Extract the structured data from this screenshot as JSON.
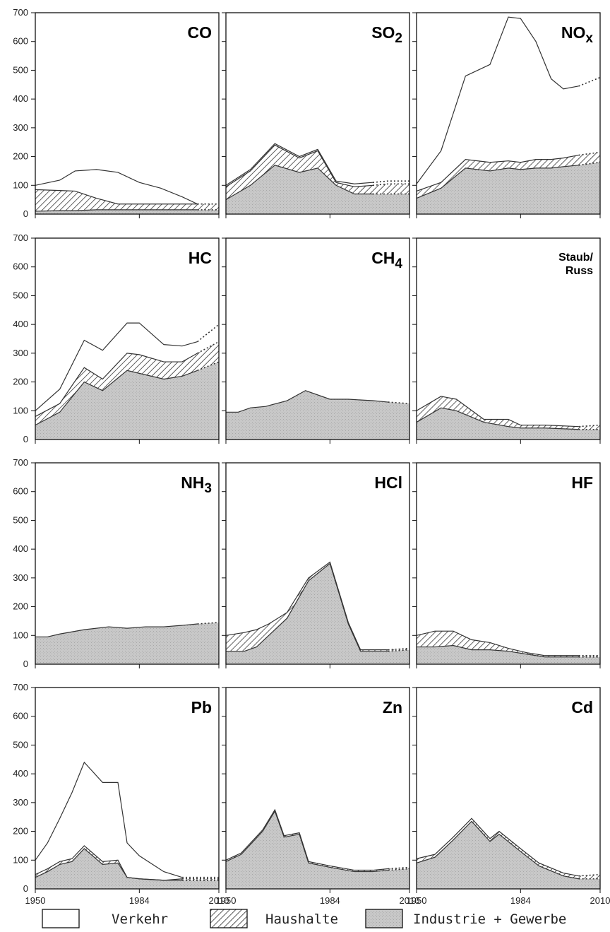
{
  "legend": [
    {
      "label": "Verkehr",
      "key": "verkehr"
    },
    {
      "label": "Haushalte",
      "key": "haushalte"
    },
    {
      "label": "Industrie + Gewerbe",
      "key": "industrie"
    }
  ],
  "colors": {
    "industrie": "#c8c8c8",
    "verkehr": "#ffffff",
    "line": "#333333"
  },
  "chart_data": [
    {
      "type": "area",
      "title": "CO",
      "x": [
        1950,
        1958,
        1963,
        1970,
        1977,
        1984,
        1991,
        1998,
        2003,
        2010
      ],
      "series": [
        {
          "name": "Industrie + Gewerbe",
          "values": [
            10,
            12,
            12,
            15,
            15,
            15,
            15,
            15,
            15,
            15
          ]
        },
        {
          "name": "Haushalte",
          "values": [
            75,
            70,
            68,
            40,
            20,
            20,
            20,
            20,
            20,
            20
          ]
        },
        {
          "name": "Verkehr",
          "values": [
            15,
            36,
            70,
            100,
            110,
            75,
            55,
            25,
            0,
            0
          ]
        }
      ],
      "projected_from": 2003,
      "ylim": [
        0,
        700
      ],
      "y_ticks": [
        100,
        200,
        300,
        400,
        500,
        600,
        700
      ],
      "x_ticks": [
        1950,
        1984,
        2010
      ]
    },
    {
      "type": "area",
      "title": "SO2",
      "title_main": "SO",
      "title_sub": "2",
      "x": [
        1950,
        1958,
        1966,
        1974,
        1980,
        1986,
        1992,
        1998,
        2003,
        2010
      ],
      "series": [
        {
          "name": "Industrie + Gewerbe",
          "values": [
            50,
            100,
            170,
            145,
            160,
            100,
            70,
            70,
            70,
            70
          ]
        },
        {
          "name": "Haushalte",
          "values": [
            45,
            50,
            70,
            50,
            60,
            10,
            25,
            30,
            35,
            35
          ]
        },
        {
          "name": "Verkehr",
          "values": [
            5,
            5,
            5,
            5,
            5,
            5,
            10,
            10,
            10,
            10
          ]
        }
      ],
      "projected_from": 1998,
      "ylim": [
        0,
        700
      ],
      "y_ticks": [
        100,
        200,
        300,
        400,
        500,
        600,
        700
      ],
      "x_ticks": [
        1950,
        1984,
        2010
      ]
    },
    {
      "type": "area",
      "title": "NOx",
      "title_main": "NO",
      "title_sub": "x",
      "x": [
        1950,
        1958,
        1966,
        1974,
        1980,
        1984,
        1989,
        1994,
        1998,
        2003,
        2010
      ],
      "series": [
        {
          "name": "Industrie + Gewerbe",
          "values": [
            55,
            90,
            160,
            150,
            160,
            155,
            160,
            160,
            165,
            170,
            180
          ]
        },
        {
          "name": "Haushalte",
          "values": [
            25,
            20,
            30,
            30,
            25,
            25,
            30,
            30,
            30,
            35,
            35
          ]
        },
        {
          "name": "Verkehr",
          "values": [
            25,
            110,
            290,
            340,
            500,
            500,
            410,
            280,
            240,
            240,
            260
          ]
        }
      ],
      "projected_from": 2003,
      "ylim": [
        0,
        700
      ],
      "y_ticks": [
        100,
        200,
        300,
        400,
        500,
        600,
        700
      ],
      "x_ticks": [
        1950,
        1984,
        2010
      ]
    },
    {
      "type": "area",
      "title": "HC",
      "x": [
        1950,
        1958,
        1966,
        1972,
        1980,
        1984,
        1992,
        1998,
        2003,
        2010
      ],
      "series": [
        {
          "name": "Industrie + Gewerbe",
          "values": [
            50,
            95,
            200,
            170,
            240,
            230,
            210,
            220,
            240,
            270
          ]
        },
        {
          "name": "Haushalte",
          "values": [
            30,
            30,
            50,
            40,
            60,
            65,
            60,
            50,
            60,
            70
          ]
        },
        {
          "name": "Verkehr",
          "values": [
            20,
            50,
            95,
            100,
            105,
            110,
            60,
            55,
            40,
            60
          ]
        }
      ],
      "projected_from": 2003,
      "ylim": [
        0,
        700
      ],
      "y_ticks": [
        100,
        200,
        300,
        400,
        500,
        600,
        700
      ],
      "x_ticks": [
        1950,
        1984,
        2010
      ]
    },
    {
      "type": "area",
      "title": "CH4",
      "title_main": "CH",
      "title_sub": "4",
      "x": [
        1950,
        1954,
        1958,
        1963,
        1970,
        1976,
        1984,
        1990,
        1998,
        2003,
        2010
      ],
      "series": [
        {
          "name": "Industrie + Gewerbe",
          "values": [
            95,
            95,
            110,
            115,
            135,
            170,
            140,
            140,
            135,
            130,
            125
          ]
        }
      ],
      "projected_from": 2003,
      "ylim": [
        0,
        700
      ],
      "y_ticks": [
        100,
        200,
        300,
        400,
        500,
        600,
        700
      ],
      "x_ticks": [
        1950,
        1984,
        2010
      ]
    },
    {
      "type": "area",
      "title": "Staub/Russ",
      "title_lines": [
        "Staub/",
        "Russ"
      ],
      "x": [
        1950,
        1958,
        1963,
        1972,
        1980,
        1984,
        1992,
        2003,
        2010
      ],
      "series": [
        {
          "name": "Industrie + Gewerbe",
          "values": [
            60,
            110,
            100,
            60,
            45,
            40,
            40,
            35,
            35
          ]
        },
        {
          "name": "Haushalte",
          "values": [
            40,
            40,
            40,
            10,
            25,
            10,
            10,
            10,
            15
          ]
        }
      ],
      "projected_from": 2003,
      "ylim": [
        0,
        700
      ],
      "y_ticks": [
        100,
        200,
        300,
        400,
        500,
        600,
        700
      ],
      "x_ticks": [
        1950,
        1984,
        2010
      ]
    },
    {
      "type": "area",
      "title": "NH3",
      "title_main": "NH",
      "title_sub": "3",
      "x": [
        1950,
        1954,
        1958,
        1966,
        1974,
        1980,
        1986,
        1992,
        1998,
        2003,
        2010
      ],
      "series": [
        {
          "name": "Industrie + Gewerbe",
          "values": [
            95,
            95,
            105,
            120,
            130,
            125,
            130,
            130,
            135,
            140,
            145
          ]
        }
      ],
      "projected_from": 2003,
      "ylim": [
        0,
        700
      ],
      "y_ticks": [
        100,
        200,
        300,
        400,
        500,
        600,
        700
      ],
      "x_ticks": [
        1950,
        1984,
        2010
      ]
    },
    {
      "type": "area",
      "title": "HCl",
      "x": [
        1950,
        1956,
        1960,
        1964,
        1970,
        1977,
        1984,
        1990,
        1994,
        2003,
        2010
      ],
      "series": [
        {
          "name": "Industrie + Gewerbe",
          "values": [
            45,
            45,
            60,
            100,
            160,
            290,
            350,
            140,
            45,
            45,
            50
          ]
        },
        {
          "name": "Haushalte",
          "values": [
            55,
            65,
            60,
            40,
            20,
            10,
            5,
            5,
            5,
            5,
            5
          ]
        }
      ],
      "projected_from": 2003,
      "ylim": [
        0,
        700
      ],
      "y_ticks": [
        100,
        200,
        300,
        400,
        500,
        600,
        700
      ],
      "x_ticks": [
        1950,
        1984,
        2010
      ]
    },
    {
      "type": "area",
      "title": "HF",
      "x": [
        1950,
        1956,
        1962,
        1968,
        1974,
        1980,
        1986,
        1992,
        1998,
        2003,
        2010
      ],
      "series": [
        {
          "name": "Industrie + Gewerbe",
          "values": [
            60,
            60,
            65,
            50,
            50,
            45,
            35,
            25,
            25,
            25,
            25
          ]
        },
        {
          "name": "Haushalte",
          "values": [
            40,
            55,
            50,
            35,
            25,
            10,
            5,
            5,
            5,
            5,
            5
          ]
        }
      ],
      "projected_from": 2003,
      "ylim": [
        0,
        700
      ],
      "y_ticks": [
        100,
        200,
        300,
        400,
        500,
        600,
        700
      ],
      "x_ticks": [
        1950,
        1984,
        2010
      ]
    },
    {
      "type": "area",
      "title": "Pb",
      "x": [
        1950,
        1954,
        1958,
        1962,
        1966,
        1972,
        1977,
        1980,
        1984,
        1992,
        1998,
        2003,
        2010
      ],
      "series": [
        {
          "name": "Industrie + Gewerbe",
          "values": [
            40,
            60,
            85,
            95,
            140,
            85,
            90,
            40,
            35,
            30,
            30,
            30,
            30
          ]
        },
        {
          "name": "Haushalte",
          "values": [
            10,
            10,
            10,
            10,
            10,
            10,
            10,
            0,
            0,
            0,
            5,
            5,
            5
          ]
        },
        {
          "name": "Verkehr",
          "values": [
            50,
            90,
            150,
            230,
            290,
            275,
            270,
            120,
            80,
            30,
            5,
            5,
            5
          ]
        }
      ],
      "projected_from": 1998,
      "ylim": [
        0,
        700
      ],
      "y_ticks": [
        100,
        200,
        300,
        400,
        500,
        600,
        700
      ],
      "x_ticks": [
        1950,
        1984,
        2010
      ]
    },
    {
      "type": "area",
      "title": "Zn",
      "x": [
        1950,
        1955,
        1962,
        1966,
        1969,
        1974,
        1977,
        1984,
        1992,
        1998,
        2003,
        2010
      ],
      "series": [
        {
          "name": "Industrie + Gewerbe",
          "values": [
            95,
            120,
            200,
            270,
            180,
            190,
            90,
            75,
            60,
            60,
            65,
            70
          ]
        },
        {
          "name": "Haushalte",
          "values": [
            5,
            5,
            5,
            5,
            5,
            5,
            5,
            5,
            5,
            5,
            5,
            5
          ]
        }
      ],
      "projected_from": 2003,
      "ylim": [
        0,
        700
      ],
      "y_ticks": [
        100,
        200,
        300,
        400,
        500,
        600,
        700
      ],
      "x_ticks": [
        1950,
        1984,
        2010
      ]
    },
    {
      "type": "area",
      "title": "Cd",
      "x": [
        1950,
        1956,
        1962,
        1968,
        1974,
        1977,
        1984,
        1990,
        1998,
        2003,
        2010
      ],
      "series": [
        {
          "name": "Industrie + Gewerbe",
          "values": [
            90,
            110,
            170,
            235,
            165,
            190,
            130,
            80,
            45,
            35,
            35
          ]
        },
        {
          "name": "Haushalte",
          "values": [
            15,
            10,
            10,
            10,
            10,
            10,
            10,
            10,
            10,
            10,
            15
          ]
        }
      ],
      "projected_from": 2003,
      "ylim": [
        0,
        700
      ],
      "y_ticks": [
        100,
        200,
        300,
        400,
        500,
        600,
        700
      ],
      "x_ticks": [
        1950,
        1984,
        2010
      ]
    }
  ]
}
